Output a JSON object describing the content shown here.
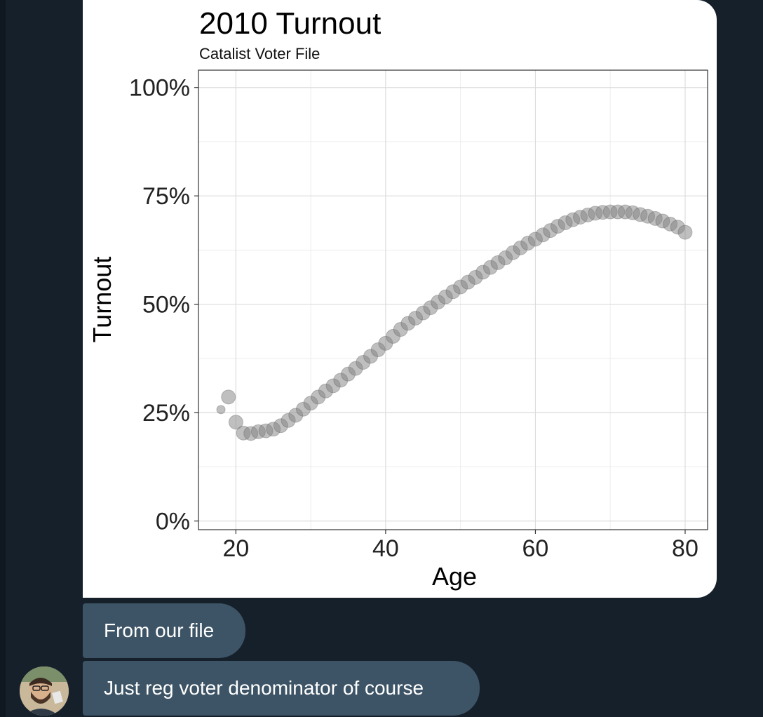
{
  "thread": {
    "messages": [
      {
        "text": "From our file"
      },
      {
        "text": "Just reg voter denominator of course"
      }
    ],
    "avatar_icon": "user-avatar-bearded-man"
  },
  "colors": {
    "background": "#15202b",
    "bubble": "#3d5466",
    "point": "#808080"
  },
  "chart_data": {
    "type": "scatter",
    "title": "2010 Turnout",
    "subtitle": "Catalist Voter File",
    "xlabel": "Age",
    "ylabel": "Turnout",
    "xlim": [
      15,
      83
    ],
    "ylim": [
      -2,
      104
    ],
    "x_ticks": [
      20,
      40,
      60,
      80
    ],
    "x_tick_labels": [
      "20",
      "40",
      "60",
      "80"
    ],
    "y_ticks": [
      0,
      25,
      50,
      75,
      100
    ],
    "y_tick_labels": [
      "0%",
      "25%",
      "50%",
      "75%",
      "100%"
    ],
    "grid": true,
    "legend": "none",
    "x": [
      18,
      19,
      20,
      21,
      22,
      23,
      24,
      25,
      26,
      27,
      28,
      29,
      30,
      31,
      32,
      33,
      34,
      35,
      36,
      37,
      38,
      39,
      40,
      41,
      42,
      43,
      44,
      45,
      46,
      47,
      48,
      49,
      50,
      51,
      52,
      53,
      54,
      55,
      56,
      57,
      58,
      59,
      60,
      61,
      62,
      63,
      64,
      65,
      66,
      67,
      68,
      69,
      70,
      71,
      72,
      73,
      74,
      75,
      76,
      77,
      78,
      79,
      80
    ],
    "y": [
      25.7,
      28.6,
      22.8,
      20.3,
      20.2,
      20.6,
      20.8,
      21.2,
      22.0,
      23.2,
      24.4,
      25.8,
      27.2,
      28.6,
      30.0,
      31.2,
      32.5,
      33.9,
      35.2,
      36.6,
      38.0,
      39.5,
      41.0,
      42.6,
      44.2,
      45.6,
      46.8,
      48.0,
      49.2,
      50.5,
      51.7,
      52.9,
      54.0,
      55.1,
      56.2,
      57.4,
      58.5,
      59.6,
      60.7,
      61.9,
      63.0,
      64.1,
      65.0,
      66.0,
      67.0,
      68.0,
      68.8,
      69.5,
      70.1,
      70.6,
      71.0,
      71.2,
      71.3,
      71.3,
      71.3,
      71.1,
      70.7,
      70.3,
      69.8,
      69.2,
      68.5,
      67.8,
      66.6
    ],
    "sizes": [
      2,
      5,
      5,
      5,
      5,
      5,
      5,
      5,
      5,
      5,
      5,
      5,
      5,
      5,
      5,
      5,
      5,
      5,
      5,
      5,
      5,
      5,
      5,
      5,
      5,
      5,
      5,
      5,
      5,
      5,
      5,
      5,
      5,
      5,
      5,
      5,
      5,
      5,
      5,
      5,
      5,
      5,
      5,
      5,
      5,
      5,
      5,
      5,
      5,
      5,
      5,
      5,
      5,
      5,
      5,
      5,
      5,
      5,
      5,
      5,
      5,
      5,
      5
    ]
  }
}
